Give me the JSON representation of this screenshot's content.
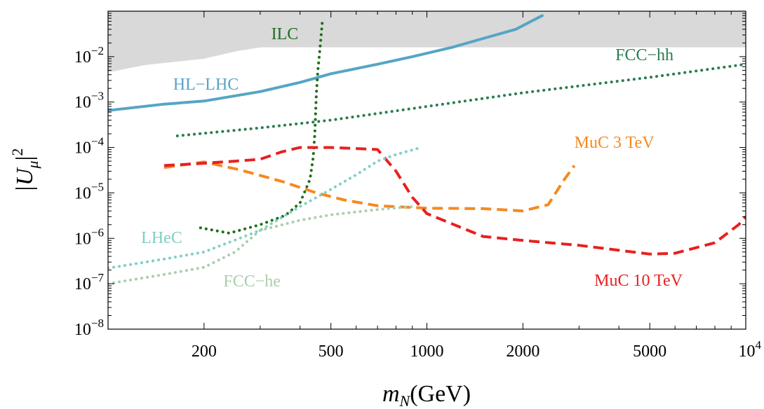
{
  "chart_data": {
    "type": "line",
    "title": "",
    "xlabel": {
      "main": "m",
      "sub": "N",
      "rest": "(GeV)"
    },
    "ylabel": {
      "pre": "|U",
      "sub": "μ",
      "post": "|",
      "sup": "2"
    },
    "x_scale": "log",
    "y_scale": "log",
    "xlim": [
      100,
      10000
    ],
    "ylim": [
      1e-08,
      0.1
    ],
    "x_ticks": [
      {
        "value": 200,
        "label": "200"
      },
      {
        "value": 500,
        "label": "500"
      },
      {
        "value": 1000,
        "label": "1000"
      },
      {
        "value": 2000,
        "label": "2000"
      },
      {
        "value": 5000,
        "label": "5000"
      },
      {
        "value": 10000,
        "label": "10",
        "sup": "4"
      }
    ],
    "y_ticks": [
      {
        "value": 1e-08,
        "base": "10",
        "exp": "−8"
      },
      {
        "value": 1e-07,
        "base": "10",
        "exp": "−7"
      },
      {
        "value": 1e-06,
        "base": "10",
        "exp": "−6"
      },
      {
        "value": 1e-05,
        "base": "10",
        "exp": "−5"
      },
      {
        "value": 0.0001,
        "base": "10",
        "exp": "−4"
      },
      {
        "value": 0.001,
        "base": "10",
        "exp": "−3"
      },
      {
        "value": 0.01,
        "base": "10",
        "exp": "−2"
      }
    ],
    "grid": false,
    "excluded_region": {
      "color": "#d9d9d9",
      "upper_y": 0.1,
      "lower_boundary": [
        [
          100,
          0.0045
        ],
        [
          130,
          0.0065
        ],
        [
          200,
          0.009
        ],
        [
          250,
          0.013
        ],
        [
          300,
          0.016
        ],
        [
          10000,
          0.016
        ]
      ]
    },
    "series": [
      {
        "name": "HL−LHC",
        "color": "#56a5c4",
        "style": "solid",
        "width": 4,
        "points": [
          [
            100,
            0.00065
          ],
          [
            150,
            0.0009
          ],
          [
            200,
            0.00105
          ],
          [
            300,
            0.0017
          ],
          [
            400,
            0.0027
          ],
          [
            500,
            0.0042
          ],
          [
            700,
            0.0068
          ],
          [
            900,
            0.01
          ],
          [
            1200,
            0.016
          ],
          [
            1500,
            0.025
          ],
          [
            1900,
            0.04
          ],
          [
            2300,
            0.08
          ]
        ],
        "label_pos": [
          160,
          0.0025
        ],
        "label_color": "#56a5c4"
      },
      {
        "name": "ILC",
        "color": "#1c6e1c",
        "style": "dotted",
        "width": 4,
        "points": [
          [
            195,
            1.7e-06
          ],
          [
            240,
            1.3e-06
          ],
          [
            300,
            2e-06
          ],
          [
            360,
            3.2e-06
          ],
          [
            400,
            6e-06
          ],
          [
            430,
            2e-05
          ],
          [
            440,
            6e-05
          ],
          [
            445,
            0.0002
          ],
          [
            450,
            0.0015
          ],
          [
            455,
            0.005
          ],
          [
            462,
            0.015
          ],
          [
            470,
            0.06
          ]
        ],
        "label_pos": [
          325,
          0.032
        ],
        "label_color": "#1c6e1c"
      },
      {
        "name": "FCC−hh",
        "color": "#2a7d4f",
        "style": "dotted",
        "width": 4,
        "points": [
          [
            165,
            0.00018
          ],
          [
            300,
            0.00027
          ],
          [
            500,
            0.0004
          ],
          [
            1000,
            0.0008
          ],
          [
            2000,
            0.0016
          ],
          [
            5000,
            0.0035
          ],
          [
            10000,
            0.0068
          ]
        ],
        "label_pos": [
          3900,
          0.011
        ],
        "label_color": "#2a7d4f"
      },
      {
        "name": "MuC 3 TeV",
        "color": "#f5891f",
        "style": "dashed",
        "width": 4,
        "points": [
          [
            150,
            3.6e-05
          ],
          [
            200,
            4.8e-05
          ],
          [
            260,
            3.2e-05
          ],
          [
            350,
            1.8e-05
          ],
          [
            450,
            1e-05
          ],
          [
            550,
            7e-06
          ],
          [
            700,
            5.2e-06
          ],
          [
            1000,
            4.6e-06
          ],
          [
            1500,
            4.5e-06
          ],
          [
            2000,
            4e-06
          ],
          [
            2400,
            5.5e-06
          ],
          [
            2700,
            2e-05
          ],
          [
            2900,
            4e-05
          ]
        ],
        "label_pos": [
          2900,
          0.00013
        ],
        "label_color": "#f5891f"
      },
      {
        "name": "MuC 10 TeV",
        "color": "#e82020",
        "style": "dashed",
        "width": 4,
        "points": [
          [
            150,
            4e-05
          ],
          [
            200,
            4.5e-05
          ],
          [
            250,
            5e-05
          ],
          [
            300,
            5.5e-05
          ],
          [
            350,
            8e-05
          ],
          [
            400,
            0.0001
          ],
          [
            500,
            0.0001
          ],
          [
            700,
            9e-05
          ],
          [
            800,
            3e-05
          ],
          [
            900,
            8e-06
          ],
          [
            1000,
            3.5e-06
          ],
          [
            1500,
            1.1e-06
          ],
          [
            2000,
            9e-07
          ],
          [
            3000,
            7e-07
          ],
          [
            5000,
            4.5e-07
          ],
          [
            6000,
            4.7e-07
          ],
          [
            8000,
            8e-07
          ],
          [
            9500,
            2e-06
          ],
          [
            10000,
            3e-06
          ]
        ],
        "label_pos": [
          3350,
          1.2e-07
        ],
        "label_color": "#e82020"
      },
      {
        "name": "LHeC",
        "color": "#7fcfc5",
        "style": "dotted",
        "width": 4,
        "points": [
          [
            100,
            2.2e-07
          ],
          [
            150,
            3.5e-07
          ],
          [
            200,
            5e-07
          ],
          [
            300,
            1.5e-06
          ],
          [
            400,
            5e-06
          ],
          [
            500,
            1.2e-05
          ],
          [
            600,
            2.5e-05
          ],
          [
            700,
            5e-05
          ],
          [
            800,
            7e-05
          ],
          [
            950,
            9.8e-05
          ]
        ],
        "label_pos": [
          127,
          1.05e-06
        ],
        "label_color": "#7fcfc5"
      },
      {
        "name": "FCC−he",
        "color": "#a9cfac",
        "style": "dotted",
        "width": 4,
        "points": [
          [
            100,
            1e-07
          ],
          [
            150,
            1.6e-07
          ],
          [
            200,
            2.3e-07
          ],
          [
            250,
            5e-07
          ],
          [
            300,
            1.5e-06
          ],
          [
            400,
            2.5e-06
          ],
          [
            500,
            3.3e-06
          ],
          [
            700,
            4.3e-06
          ],
          [
            900,
            5e-06
          ]
        ],
        "label_pos": [
          230,
          1.15e-07
        ],
        "label_color": "#a9cfac"
      }
    ]
  }
}
